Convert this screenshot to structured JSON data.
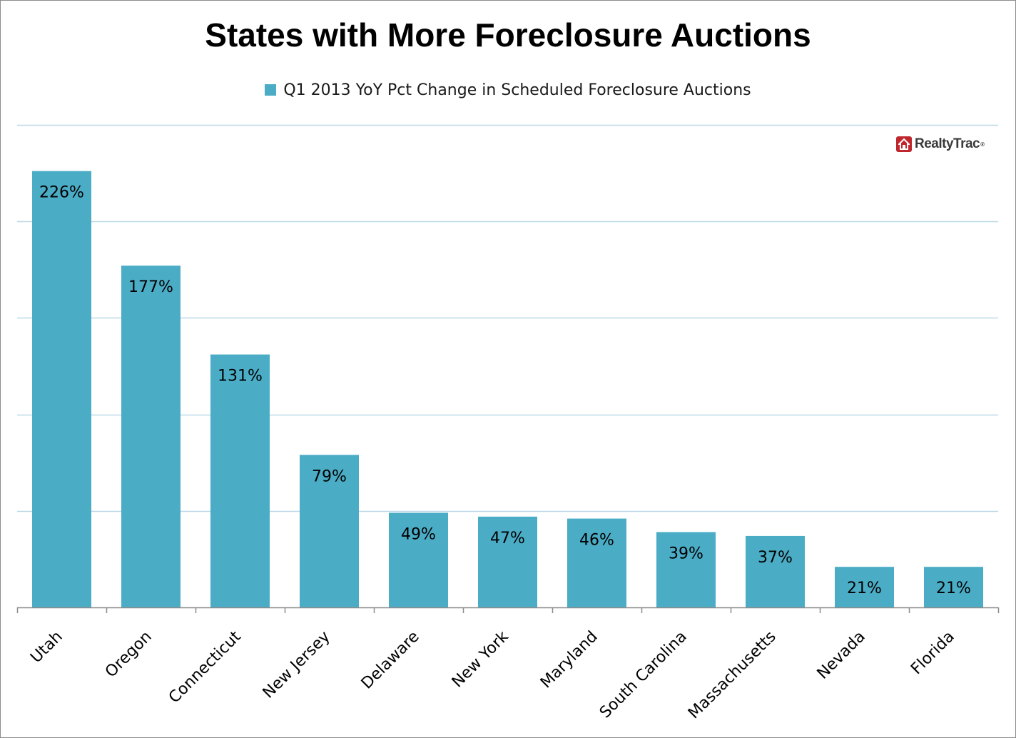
{
  "chart_data": {
    "type": "bar",
    "title": "States with More Foreclosure Auctions",
    "legend": {
      "position": "top",
      "entries": [
        "Q1 2013 YoY Pct Change in Scheduled Foreclosure Auctions"
      ]
    },
    "categories": [
      "Utah",
      "Oregon",
      "Connecticut",
      "New Jersey",
      "Delaware",
      "New York",
      "Maryland",
      "South Carolina",
      "Massachusetts",
      "Nevada",
      "Florida"
    ],
    "series": [
      {
        "name": "Q1 2013 YoY Pct Change in Scheduled Foreclosure Auctions",
        "values": [
          226,
          177,
          131,
          79,
          49,
          47,
          46,
          39,
          37,
          21,
          21
        ],
        "labels": [
          "226%",
          "177%",
          "131%",
          "79%",
          "49%",
          "47%",
          "46%",
          "39%",
          "37%",
          "21%",
          "21%"
        ]
      }
    ],
    "ylim": [
      0,
      250
    ],
    "gridlines": [
      50,
      100,
      150,
      200,
      250
    ],
    "grid": true,
    "colors": {
      "bar": "#4bacc6",
      "grid": "#bcd8e6",
      "axis": "#8c8c8c"
    }
  },
  "watermark": {
    "text": "RealtyTrac",
    "icon": "house-icon",
    "color": "#c0272d"
  }
}
